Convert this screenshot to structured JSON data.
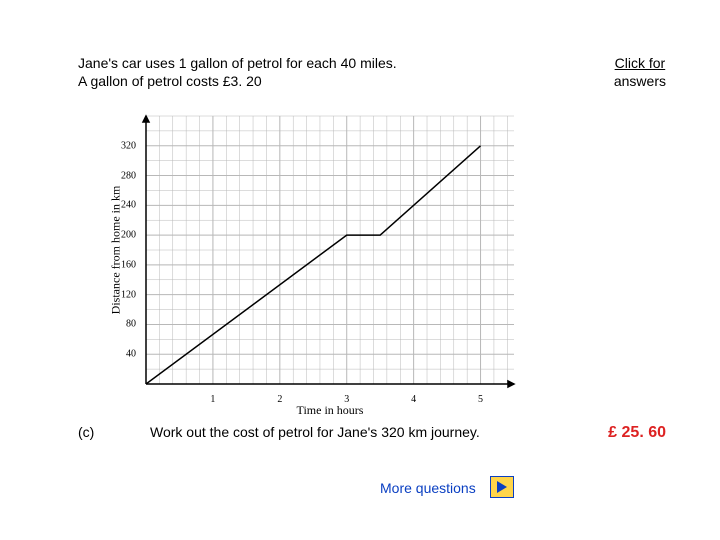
{
  "problem": {
    "line1": "Jane's car uses 1 gallon of petrol for each 40 miles.",
    "line2": "A gallon of petrol costs £3. 20"
  },
  "answers_link": {
    "line1": "Click for",
    "line2": "answers"
  },
  "question": {
    "part": "(c)",
    "text": "Work out the cost of petrol for Jane's 320 km journey."
  },
  "answer": "£ 25. 60",
  "more_link": "More questions",
  "chart": {
    "type": "line",
    "xlabel": "Time in hours",
    "ylabel": "Distance from home in km",
    "xlim": [
      0,
      5.5
    ],
    "ylim": [
      0,
      360
    ],
    "xtick_major": [
      1,
      2,
      3,
      4,
      5
    ],
    "ytick_major": [
      40,
      80,
      120,
      160,
      200,
      240,
      280,
      320
    ],
    "x_minor_per_major": 5,
    "y_minor_per_major": 2,
    "grid_color": "#b8b8b8",
    "axis_color": "#000000",
    "line_color": "#000000",
    "background_color": "#ffffff",
    "label_fontsize": 12,
    "tick_fontsize": 10,
    "line_width": 1.5,
    "points": [
      {
        "x": 0,
        "y": 0
      },
      {
        "x": 3,
        "y": 200
      },
      {
        "x": 3.5,
        "y": 200
      },
      {
        "x": 5,
        "y": 320
      }
    ]
  },
  "more_icon": {
    "border_color": "#0a3fc2",
    "fill_color": "#ffd54a",
    "arrow_color": "#0a3fc2"
  }
}
